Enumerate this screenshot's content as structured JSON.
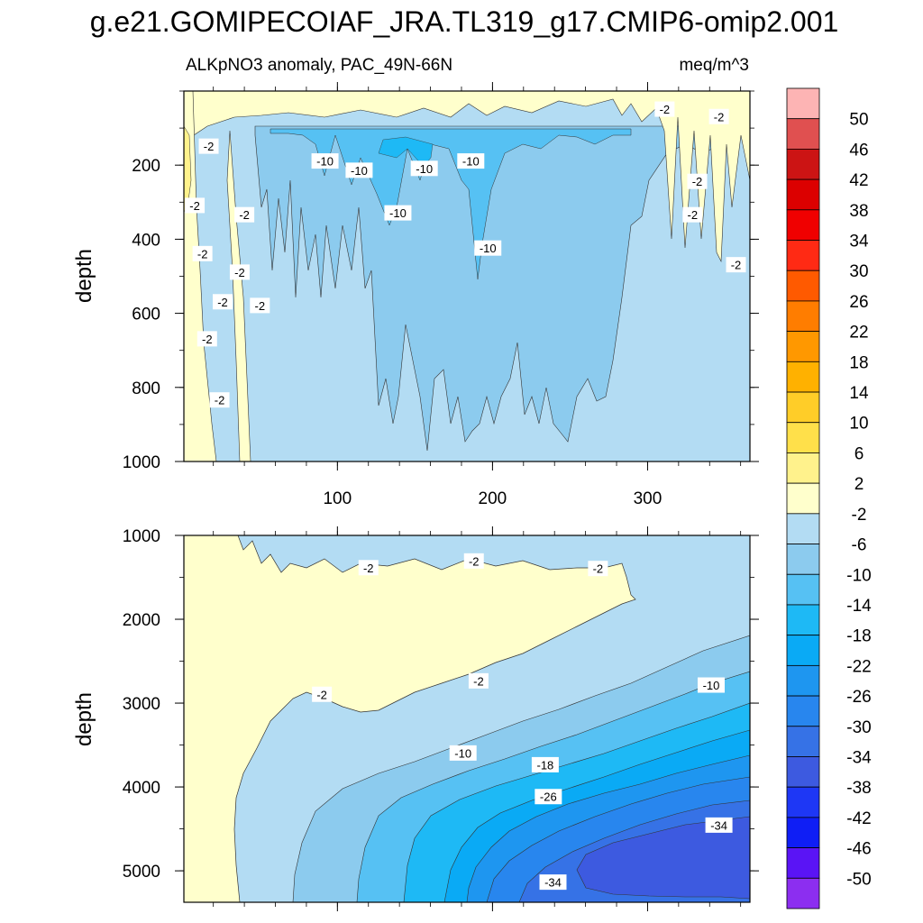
{
  "title": "g.e21.GOMIPECOIAF_JRA.TL319_g17.CMIP6-omip2.001",
  "subtitle_left": "ALKpNO3 anomaly, PAC_49N-66N",
  "subtitle_right": "meq/m^3",
  "chart_data": [
    {
      "type": "contour",
      "panel": "top",
      "ylabel": "depth",
      "x_ticks": [
        "100",
        "200",
        "300"
      ],
      "x_tick_values": [
        100,
        200,
        300
      ],
      "xlim": [
        1,
        366
      ],
      "y_ticks": [
        "200",
        "400",
        "600",
        "800",
        "1000"
      ],
      "y_tick_values": [
        200,
        400,
        600,
        800,
        1000
      ],
      "ylim": [
        0,
        1000
      ],
      "y_inverted": true,
      "contour_labels": [
        {
          "text": "-2",
          "x": 17,
          "y": 150
        },
        {
          "text": "-2",
          "x": 8,
          "y": 310
        },
        {
          "text": "-2",
          "x": 13,
          "y": 440
        },
        {
          "text": "-2",
          "x": 40,
          "y": 335
        },
        {
          "text": "-2",
          "x": 37,
          "y": 490
        },
        {
          "text": "-2",
          "x": 26,
          "y": 570
        },
        {
          "text": "-2",
          "x": 50,
          "y": 580
        },
        {
          "text": "-2",
          "x": 16,
          "y": 670
        },
        {
          "text": "-2",
          "x": 24,
          "y": 835
        },
        {
          "text": "-10",
          "x": 92,
          "y": 190
        },
        {
          "text": "-10",
          "x": 114,
          "y": 215
        },
        {
          "text": "-10",
          "x": 156,
          "y": 210
        },
        {
          "text": "-10",
          "x": 139,
          "y": 330
        },
        {
          "text": "-10",
          "x": 186,
          "y": 190
        },
        {
          "text": "-10",
          "x": 197,
          "y": 425
        },
        {
          "text": "-2",
          "x": 311,
          "y": 50
        },
        {
          "text": "-2",
          "x": 346,
          "y": 70
        },
        {
          "text": "-2",
          "x": 332,
          "y": 245
        },
        {
          "text": "-2",
          "x": 329,
          "y": 335
        },
        {
          "text": "-2",
          "x": 357,
          "y": 470
        }
      ]
    },
    {
      "type": "contour",
      "panel": "bottom",
      "ylabel": "depth",
      "y_ticks": [
        "1000",
        "2000",
        "3000",
        "4000",
        "5000"
      ],
      "y_tick_values": [
        1000,
        2000,
        3000,
        4000,
        5000
      ],
      "ylim": [
        1000,
        5375
      ],
      "xlim": [
        1,
        366
      ],
      "y_inverted": true,
      "contour_labels": [
        {
          "text": "-2",
          "x": 120,
          "y": 1390
        },
        {
          "text": "-2",
          "x": 188,
          "y": 1310
        },
        {
          "text": "-2",
          "x": 268,
          "y": 1400
        },
        {
          "text": "-2",
          "x": 90,
          "y": 2900
        },
        {
          "text": "-2",
          "x": 191,
          "y": 2740
        },
        {
          "text": "-10",
          "x": 341,
          "y": 2790
        },
        {
          "text": "-10",
          "x": 181,
          "y": 3600
        },
        {
          "text": "-18",
          "x": 234,
          "y": 3740
        },
        {
          "text": "-26",
          "x": 236,
          "y": 4120
        },
        {
          "text": "-34",
          "x": 346,
          "y": 4460
        },
        {
          "text": "-34",
          "x": 239,
          "y": 5140
        }
      ]
    }
  ],
  "colorbar": {
    "labels": [
      "50",
      "46",
      "42",
      "38",
      "34",
      "30",
      "26",
      "22",
      "18",
      "14",
      "10",
      "6",
      "2",
      "-2",
      "-6",
      "-10",
      "-14",
      "-18",
      "-22",
      "-26",
      "-30",
      "-34",
      "-38",
      "-42",
      "-46",
      "-50"
    ],
    "colors": [
      "#fdb4b4",
      "#e05050",
      "#cc1414",
      "#dc0000",
      "#f00000",
      "#ff2a14",
      "#ff5a00",
      "#ff7d00",
      "#ff9800",
      "#ffb100",
      "#ffcd28",
      "#ffe04a",
      "#fff28c",
      "#ffffcc",
      "#b3dcf3",
      "#8ccbee",
      "#56c1f3",
      "#1eb9f5",
      "#0aaaf5",
      "#1e96f0",
      "#2886ee",
      "#3672e6",
      "#3d5ae0",
      "#1e37f5",
      "#0f1ef5",
      "#5a14f5",
      "#8c2ef0"
    ]
  }
}
